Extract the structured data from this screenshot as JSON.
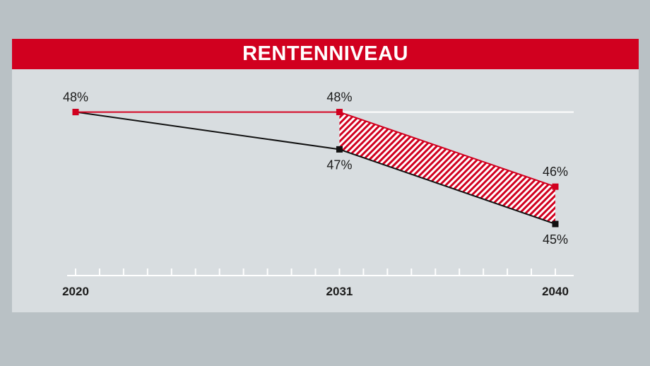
{
  "chart_data": {
    "type": "line",
    "title": "RENTENNIVEAU",
    "x_ticks": [
      "2020",
      "2031",
      "2040"
    ],
    "x_range": [
      2020,
      2040
    ],
    "ylim": [
      44.3,
      48.2
    ],
    "series": [
      {
        "color": "#d1001f",
        "points": [
          {
            "x": 2020,
            "y": 48,
            "label": "48%"
          },
          {
            "x": 2031,
            "y": 48,
            "label": "48%"
          },
          {
            "x": 2040,
            "y": 46,
            "label": "46%"
          }
        ]
      },
      {
        "color": "#111111",
        "points": [
          {
            "x": 2020,
            "y": 48,
            "label": ""
          },
          {
            "x": 2031,
            "y": 47,
            "label": "47%"
          },
          {
            "x": 2040,
            "y": 45,
            "label": "45%"
          }
        ]
      }
    ],
    "reference_line": {
      "y": 48,
      "color": "#ffffff"
    },
    "shaded_gap": {
      "from_x": 2031,
      "to_x": 2040,
      "pattern": "hatched",
      "color": "#d1001f"
    },
    "label_2020": "48%"
  }
}
